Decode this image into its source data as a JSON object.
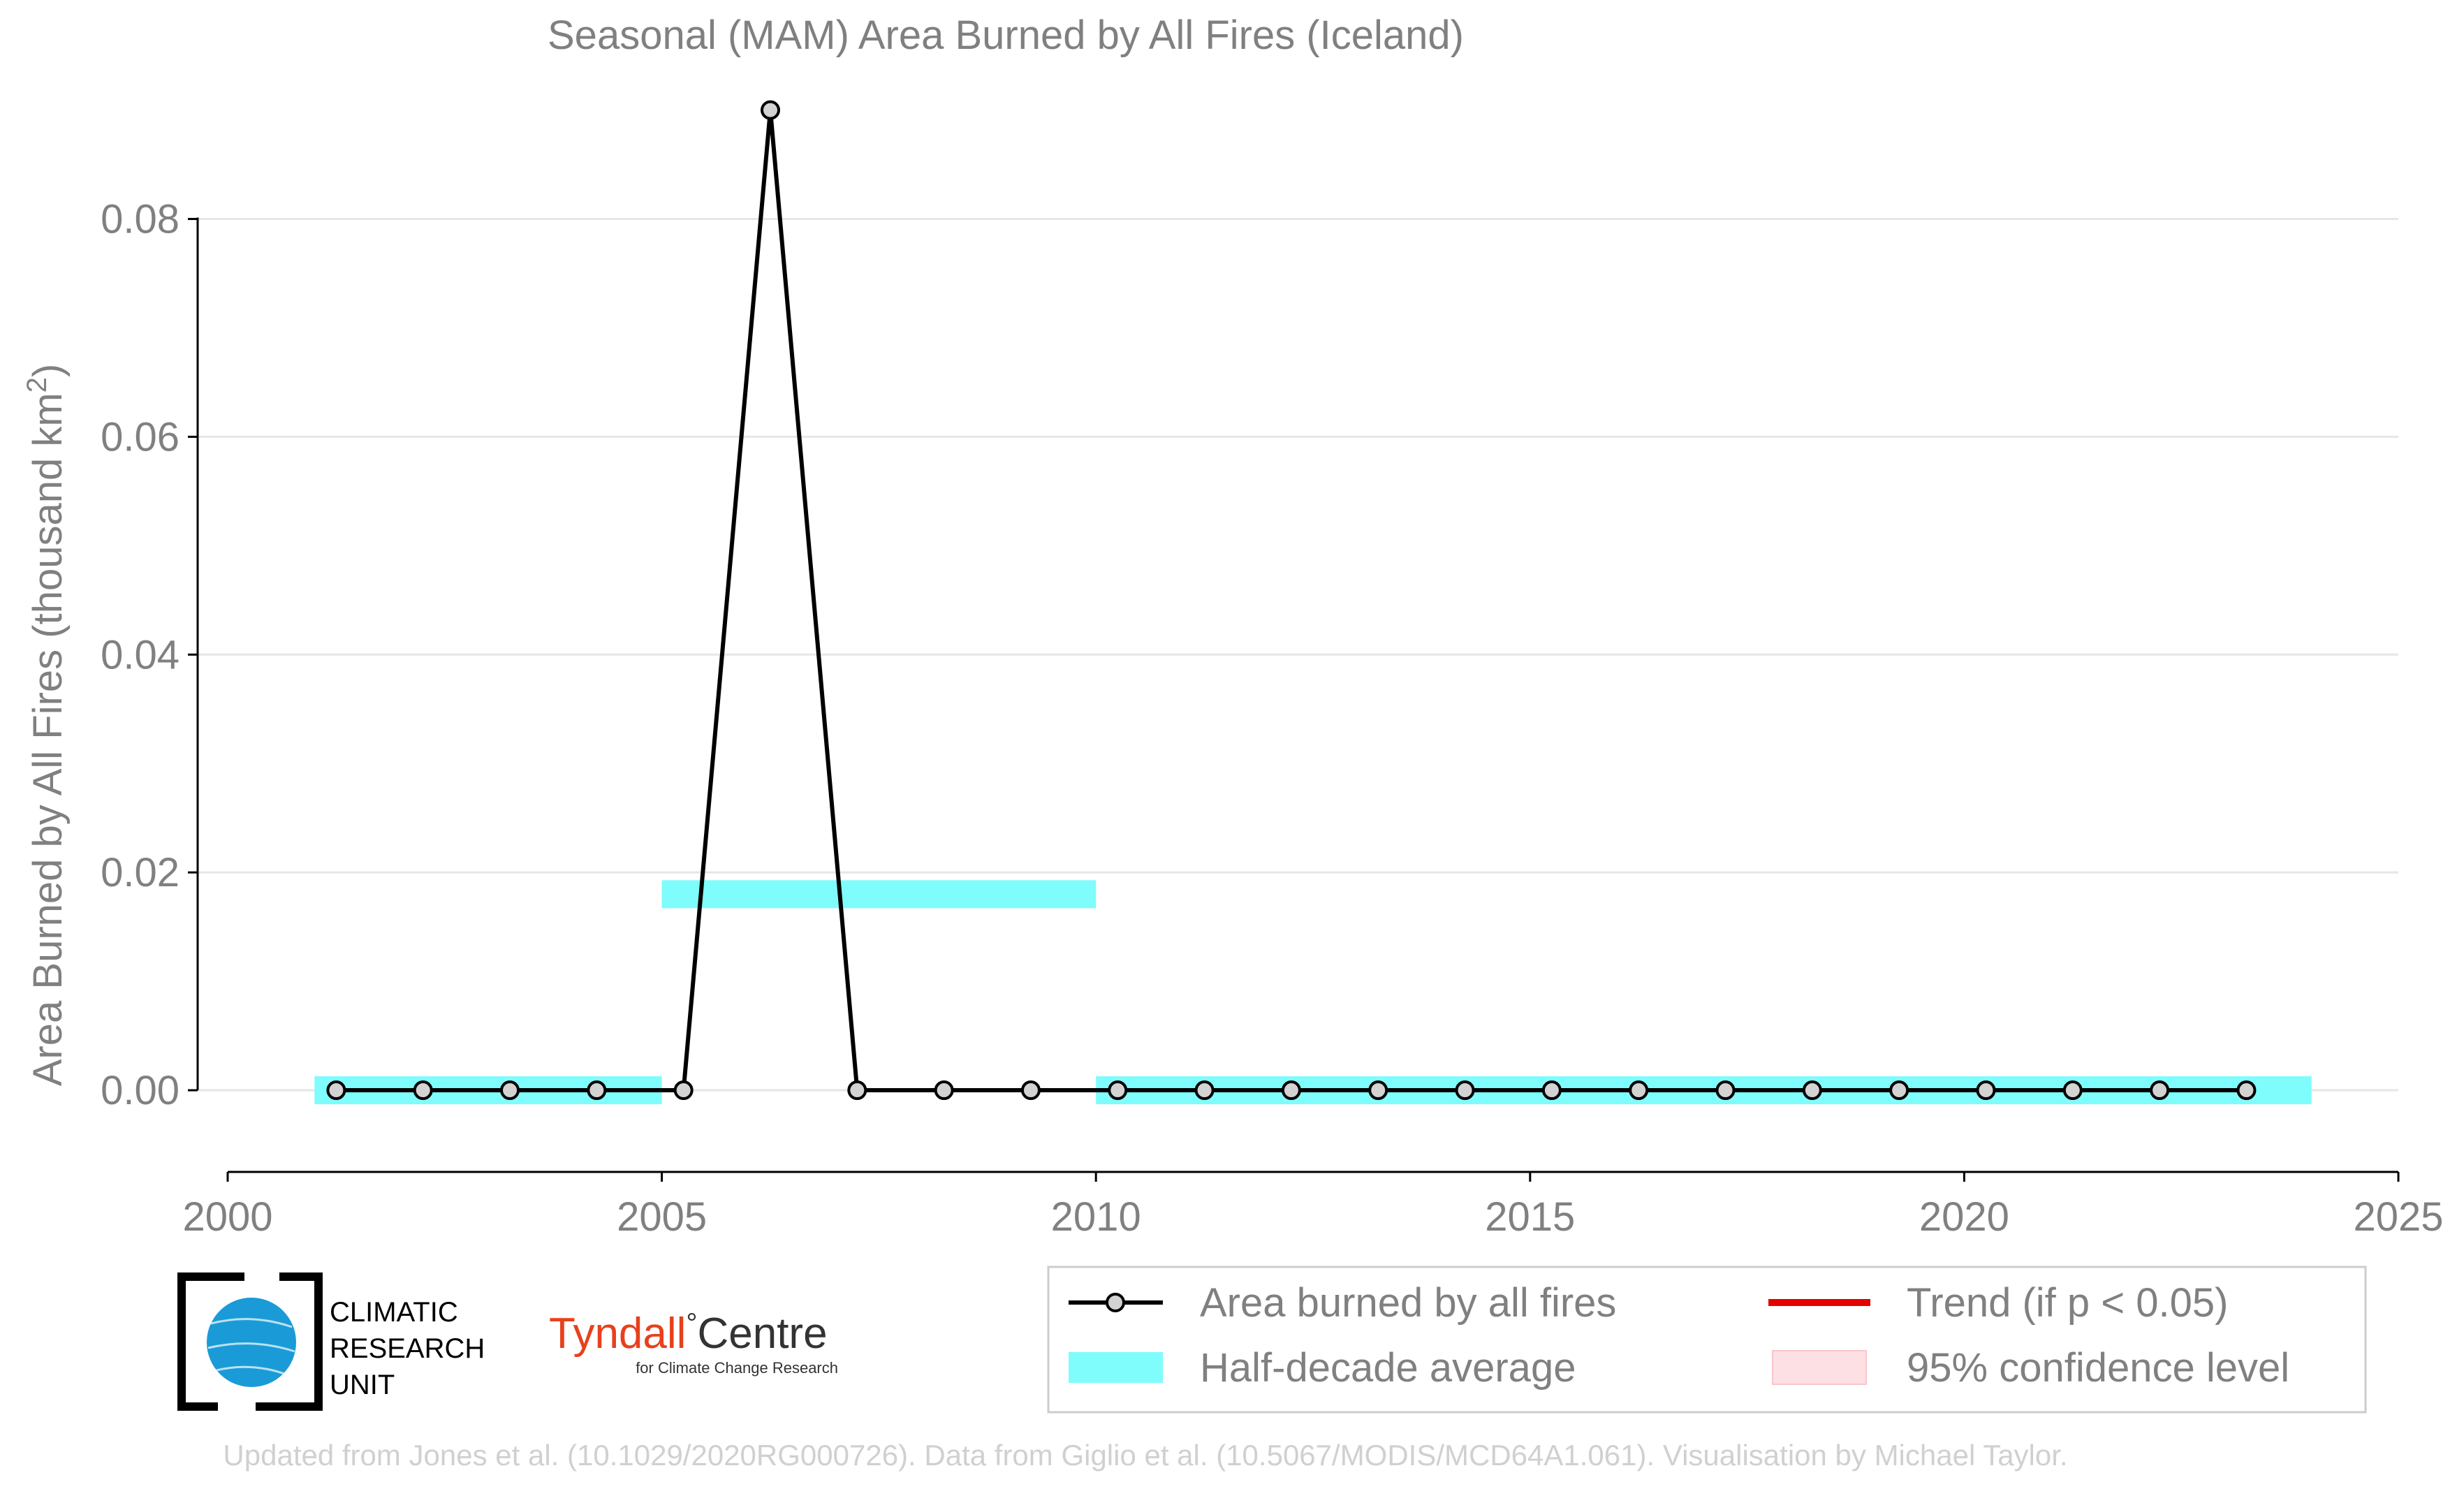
{
  "chart_data": {
    "type": "line",
    "title": "Seasonal (MAM) Area Burned by All Fires (Iceland)",
    "xlabel": "",
    "ylabel": "Area Burned by All Fires (thousand km",
    "ylabel_sup": "2",
    "ylabel_close": ")",
    "xlim": [
      2000,
      2025
    ],
    "ylim": [
      -0.0075,
      0.091
    ],
    "x_ticks": [
      2000,
      2005,
      2010,
      2015,
      2020,
      2025
    ],
    "y_ticks": [
      0.0,
      0.02,
      0.04,
      0.06,
      0.08
    ],
    "y_tick_labels": [
      "0.00",
      "0.02",
      "0.04",
      "0.06",
      "0.08"
    ],
    "grid": "horizontal",
    "series": [
      {
        "name": "Area burned by all fires",
        "x": [
          2001.25,
          2002.25,
          2003.25,
          2004.25,
          2005.25,
          2006.25,
          2007.25,
          2008.25,
          2009.25,
          2010.25,
          2011.25,
          2012.25,
          2013.25,
          2014.25,
          2015.25,
          2016.25,
          2017.25,
          2018.25,
          2019.25,
          2020.25,
          2021.25,
          2022.25,
          2023.25
        ],
        "values": [
          0,
          0,
          0,
          0,
          0,
          0.09,
          0,
          0,
          0,
          0,
          0,
          0,
          0,
          0,
          0,
          0,
          0,
          0,
          0,
          0,
          0,
          0,
          0
        ]
      }
    ],
    "half_decade_average": [
      {
        "x_start": 2001,
        "x_end": 2005,
        "value": 0.0
      },
      {
        "x_start": 2005,
        "x_end": 2010,
        "value": 0.018
      },
      {
        "x_start": 2010,
        "x_end": 2024,
        "value": 0.0
      }
    ],
    "legend": {
      "placement": "bottom-right",
      "entries": [
        "Area burned by all fires",
        "Trend (if p < 0.05)",
        "Half-decade average",
        "95% confidence level"
      ]
    },
    "colors": {
      "line": "#000000",
      "marker_fill": "#d3d3d3",
      "half_decade": "#7ffcfc",
      "trend": "#e50000",
      "confidence": "#fde0e3",
      "text": "#808080",
      "grid": "#e6e6e6",
      "footer": "#d0d0d0"
    }
  },
  "logos": {
    "cru_lines": [
      "CLIMATIC",
      "RESEARCH",
      "UNIT"
    ],
    "tyndall_name": "Tyndall",
    "tyndall_degree": "°",
    "tyndall_centre": "Centre",
    "tyndall_sub": "for Climate Change Research",
    "tyndall_color": "#e8401c",
    "cru_globe_color": "#1a9bd7"
  },
  "footer": "Updated from Jones et al. (10.1029/2020RG000726). Data from Giglio et al. (10.5067/MODIS/MCD64A1.061). Visualisation by Michael Taylor."
}
